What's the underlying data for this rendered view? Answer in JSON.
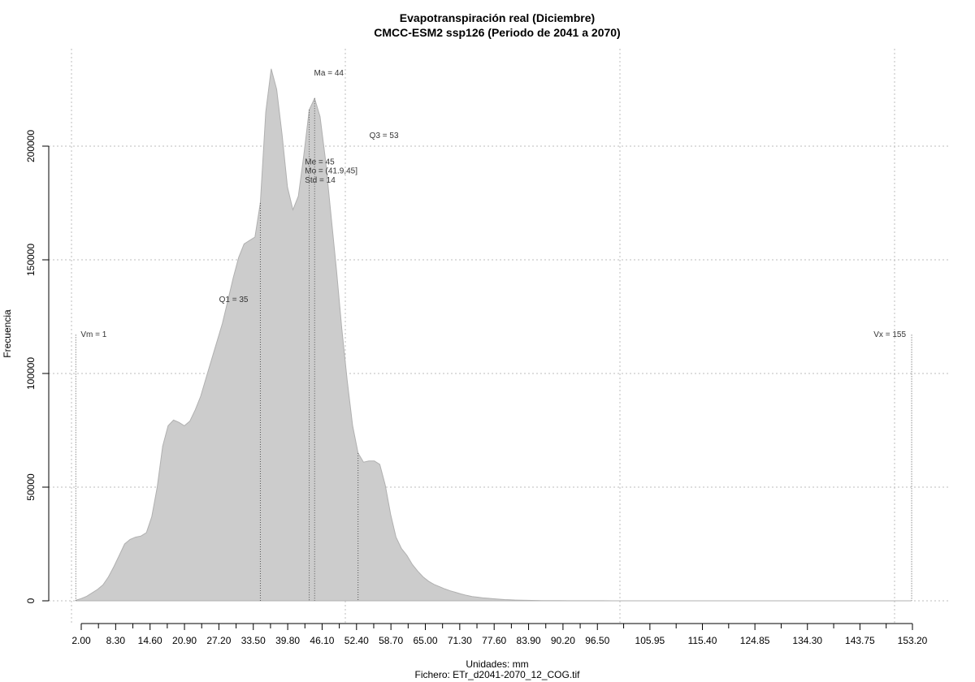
{
  "chart_data": {
    "type": "area",
    "title": "Evapotranspiración real (Diciembre)",
    "subtitle": "CMCC-ESM2 ssp126 (Periodo de 2041 a 2070)",
    "xlabel": "Unidades: mm",
    "file_label": "Fichero: ETr_d2041-2070_12_COG.tif",
    "ylabel": "Frecuencia",
    "colors": {
      "fill": "#cccccc",
      "stroke": "#b0b0b0",
      "grid": "#bdbdbd",
      "marker": "#555555"
    },
    "grid": true,
    "x_tick_labels": [
      "2.00",
      "8.30",
      "14.60",
      "20.90",
      "27.20",
      "33.50",
      "39.80",
      "46.10",
      "52.40",
      "58.70",
      "65.00",
      "71.30",
      "77.60",
      "83.90",
      "90.20",
      "96.50",
      "105.95",
      "115.40",
      "124.85",
      "134.30",
      "143.75",
      "153.20"
    ],
    "y_ticks": [
      0,
      50000,
      100000,
      150000,
      200000
    ],
    "y_tick_labels": [
      "0",
      "50000",
      "100000",
      "150000",
      "200000"
    ],
    "ylim": [
      0,
      240000
    ],
    "x": [
      1,
      2,
      3,
      4,
      5,
      6,
      7,
      8,
      9,
      10,
      11,
      12,
      13,
      14,
      15,
      16,
      17,
      18,
      19,
      20,
      21,
      22,
      23,
      24,
      25,
      26,
      27,
      28,
      29,
      30,
      31,
      32,
      33,
      34,
      35,
      36,
      37,
      38,
      39,
      40,
      41,
      42,
      43,
      44,
      45,
      46,
      47,
      48,
      49,
      50,
      51,
      52,
      53,
      54,
      55,
      56,
      57,
      58,
      59,
      60,
      61,
      62,
      63,
      64,
      65,
      66,
      67,
      68,
      69,
      70,
      71,
      72,
      73,
      74,
      75,
      76,
      77,
      78,
      79,
      80,
      81,
      82,
      83,
      84,
      85,
      86,
      87,
      88,
      89,
      90,
      92,
      94,
      96,
      98,
      100,
      105,
      110,
      120,
      130,
      140,
      150,
      155
    ],
    "y": [
      200,
      1000,
      2000,
      3500,
      5000,
      7000,
      10500,
      15000,
      20000,
      25000,
      27000,
      28000,
      28500,
      30000,
      37000,
      50000,
      68000,
      77000,
      79500,
      78500,
      77000,
      79000,
      84000,
      90000,
      98000,
      106000,
      114000,
      122000,
      132000,
      142000,
      151000,
      157000,
      158500,
      160000,
      175000,
      215000,
      234000,
      225000,
      205000,
      182000,
      172000,
      178000,
      196000,
      216000,
      221000,
      213000,
      194000,
      170000,
      146000,
      120000,
      97000,
      77000,
      65000,
      61000,
      61500,
      61500,
      60000,
      51000,
      38000,
      28000,
      23000,
      20000,
      16000,
      13000,
      10500,
      8600,
      7200,
      6200,
      5200,
      4400,
      3700,
      3000,
      2400,
      1900,
      1600,
      1300,
      1100,
      900,
      700,
      550,
      430,
      330,
      260,
      210,
      170,
      140,
      110,
      90,
      70,
      60,
      45,
      35,
      28,
      20,
      15,
      10,
      6,
      4,
      2,
      1,
      0,
      0
    ],
    "annotations": {
      "vm": {
        "label": "Vm = 1",
        "value": 1
      },
      "q1": {
        "label": "Q1 = 35",
        "value": 35
      },
      "ma": {
        "label": "Ma = 44",
        "value": 44
      },
      "me": {
        "label": "Me = 45",
        "value": 45
      },
      "mo": {
        "label": "Mo = (41.9,45]"
      },
      "std": {
        "label": "Std = 14"
      },
      "q3": {
        "label": "Q3 = 53",
        "value": 53
      },
      "vx": {
        "label": "Vx = 155",
        "value": 155
      }
    }
  }
}
